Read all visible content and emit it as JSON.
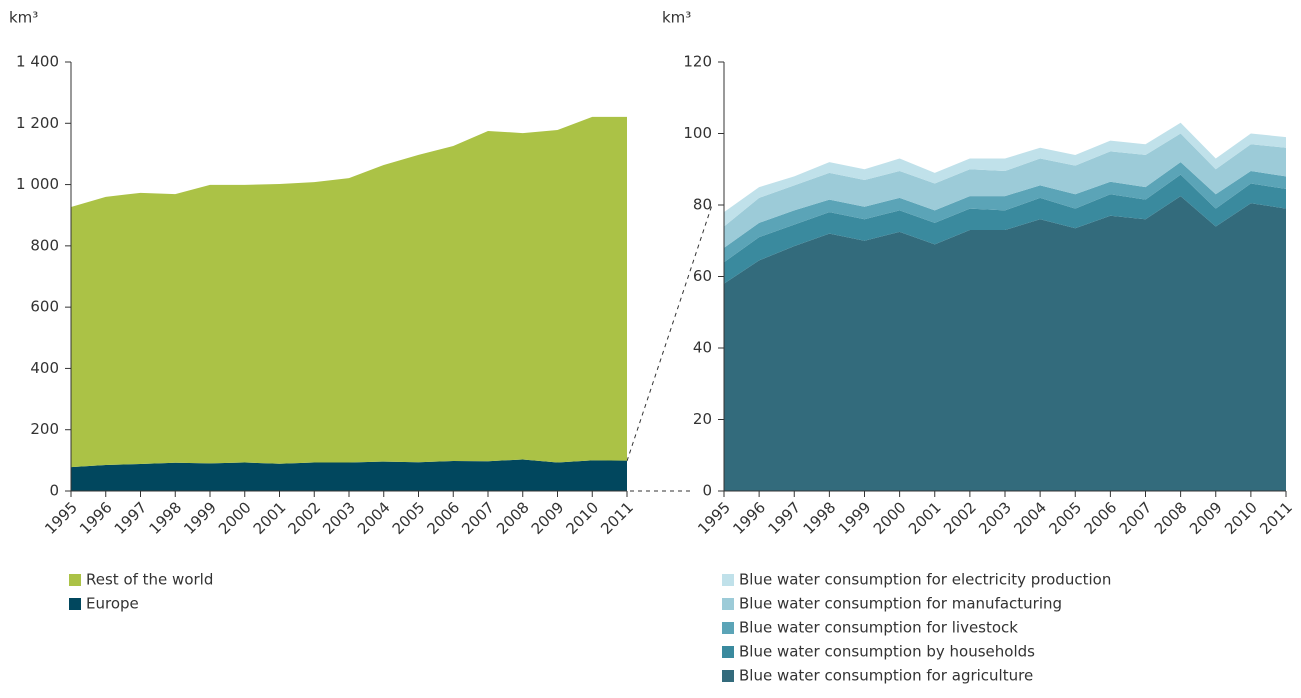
{
  "chart_data": [
    {
      "type": "stacked-area",
      "y_label": "km³",
      "x": [
        1995,
        1996,
        1997,
        1998,
        1999,
        2000,
        2001,
        2002,
        2003,
        2004,
        2005,
        2006,
        2007,
        2008,
        2009,
        2010,
        2011
      ],
      "xlim": [
        1995,
        2011
      ],
      "ylim": [
        0,
        1400
      ],
      "yticks": [
        0,
        200,
        400,
        600,
        800,
        {
          "value": 1000,
          "label": "1 000"
        },
        {
          "value": 1200,
          "label": "1 200"
        },
        {
          "value": 1400,
          "label": "1 400"
        }
      ],
      "series": [
        {
          "name": "Europe",
          "color": "#01475e",
          "values": [
            78,
            85,
            88,
            92,
            90,
            93,
            89,
            93,
            93,
            96,
            94,
            98,
            97,
            103,
            93,
            100,
            99
          ]
        },
        {
          "name": "Rest of the world",
          "color": "#abc246",
          "values": [
            849,
            875,
            885,
            877,
            909,
            906,
            913,
            915,
            928,
            968,
            1003,
            1028,
            1078,
            1065,
            1085,
            1121,
            1122
          ]
        }
      ]
    },
    {
      "type": "stacked-area",
      "y_label": "km³",
      "x": [
        1995,
        1996,
        1997,
        1998,
        1999,
        2000,
        2001,
        2002,
        2003,
        2004,
        2005,
        2006,
        2007,
        2008,
        2009,
        2010,
        2011
      ],
      "xlim": [
        1995,
        2011
      ],
      "ylim": [
        0,
        120
      ],
      "yticks": [
        0,
        20,
        40,
        60,
        80,
        100,
        120
      ],
      "series": [
        {
          "name": "Blue water consumption for agriculture",
          "color": "#336b7c",
          "values": [
            58,
            64.5,
            68.5,
            72,
            70,
            72.5,
            69,
            73,
            73,
            76,
            73.5,
            77,
            76,
            82.5,
            74,
            80.5,
            79
          ]
        },
        {
          "name": "Blue water consumption by households",
          "color": "#3a8a9e",
          "values": [
            6,
            6.5,
            6,
            6,
            6,
            6,
            6,
            6,
            5.5,
            6,
            5.5,
            6,
            5.5,
            6,
            5,
            5.5,
            5.5
          ]
        },
        {
          "name": "Blue water consumption for livestock",
          "color": "#5ba4b7",
          "values": [
            4,
            4,
            4,
            3.5,
            3.5,
            3.5,
            3.5,
            3.5,
            4,
            3.5,
            4,
            3.5,
            3.5,
            3.5,
            4,
            3.5,
            3.5
          ]
        },
        {
          "name": "Blue water consumption for manufacturing",
          "color": "#9ccbd8",
          "values": [
            6,
            7,
            7,
            7.5,
            7.5,
            7.5,
            7.5,
            7.5,
            7,
            7.5,
            8,
            8.5,
            9,
            8,
            7,
            7.5,
            8
          ]
        },
        {
          "name": "Blue water consumption for electricity production",
          "color": "#c0e1ea",
          "values": [
            4,
            3,
            2.5,
            3,
            3,
            3.5,
            3,
            3,
            3.5,
            3,
            3,
            3,
            3,
            3,
            3,
            3,
            3
          ]
        }
      ]
    }
  ]
}
